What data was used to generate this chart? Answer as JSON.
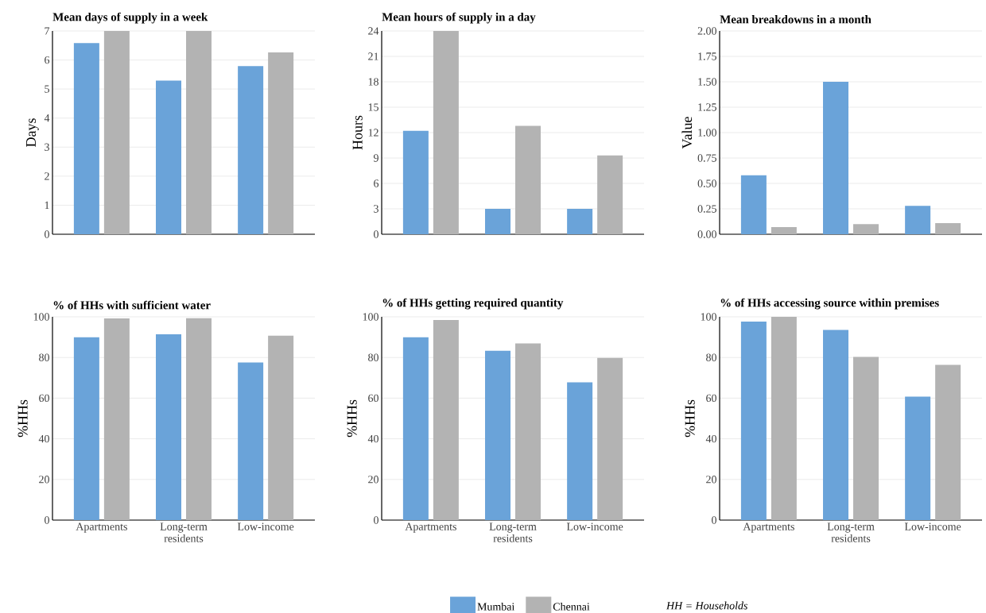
{
  "chart_data": [
    {
      "type": "bar",
      "title": "Mean days of supply in a week",
      "ylabel": "Days",
      "categories": [
        null,
        null,
        null
      ],
      "series": [
        {
          "color": "#6aa3d9",
          "values": [
            6.58,
            5.29,
            5.79
          ]
        },
        {
          "color": "#b3b3b3",
          "values": [
            7,
            7,
            6.26
          ]
        }
      ],
      "ylim": [
        0,
        7
      ],
      "yticks": [
        0,
        1,
        2,
        3,
        4,
        5,
        6,
        7
      ],
      "grid": "y"
    },
    {
      "type": "bar",
      "title": "Mean hours of supply in a day",
      "ylabel": "Hours",
      "categories": [
        null,
        null,
        null
      ],
      "series": [
        {
          "color": "#6aa3d9",
          "values": [
            12.2,
            3.0,
            3.0
          ]
        },
        {
          "color": "#b3b3b3",
          "values": [
            24,
            12.8,
            9.3
          ]
        }
      ],
      "ylim": [
        0,
        24
      ],
      "yticks": [
        0,
        3,
        6,
        9,
        12,
        15,
        18,
        21,
        24
      ],
      "grid": "y"
    },
    {
      "type": "bar",
      "title": "Mean breakdowns in a month",
      "ylabel": "Value",
      "categories": [
        null,
        null,
        null
      ],
      "series": [
        {
          "color": "#6aa3d9",
          "values": [
            0.58,
            1.5,
            0.28
          ]
        },
        {
          "color": "#b3b3b3",
          "values": [
            0.07,
            0.1,
            0.11
          ]
        }
      ],
      "ylim": [
        0,
        2
      ],
      "yticks": [
        {
          "value": 0,
          "label": "0.00"
        },
        {
          "value": 0.25,
          "label": "0.25"
        },
        {
          "value": 0.5,
          "label": "0.50"
        },
        {
          "value": 0.75,
          "label": "0.75"
        },
        {
          "value": 1,
          "label": "1.00"
        },
        {
          "value": 1.25,
          "label": "1.25"
        },
        {
          "value": 1.5,
          "label": "1.50"
        },
        {
          "value": 1.75,
          "label": "1.75"
        },
        {
          "value": 2,
          "label": "2.00"
        }
      ],
      "grid": "y"
    },
    {
      "type": "bar",
      "title": "% of HHs with sufficient water",
      "ylabel": "%HHs",
      "categories": [
        "Apartments",
        "Long-term residents",
        "Low-income"
      ],
      "series": [
        {
          "color": "#6aa3d9",
          "values": [
            89.9,
            91.4,
            77.5
          ]
        },
        {
          "color": "#b3b3b3",
          "values": [
            99.2,
            99.3,
            90.7
          ]
        }
      ],
      "ylim": [
        0,
        100
      ],
      "yticks": [
        0,
        20,
        40,
        60,
        80,
        100
      ],
      "grid": "y"
    },
    {
      "type": "bar",
      "title": "% of HHs getting required quantity",
      "ylabel": "%HHs",
      "categories": [
        "Apartments",
        "Long-term residents",
        "Low-income"
      ],
      "series": [
        {
          "name": "Mumbai",
          "color": "#6aa3d9",
          "values": [
            89.9,
            83.3,
            67.8
          ]
        },
        {
          "name": "Chennai",
          "color": "#b3b3b3",
          "values": [
            98.4,
            86.9,
            79.8
          ]
        }
      ],
      "ylim": [
        0,
        100
      ],
      "yticks": [
        0,
        20,
        40,
        60,
        80,
        100
      ],
      "grid": "y",
      "legend": "bottom",
      "annotations": [
        "HH = Households"
      ]
    },
    {
      "type": "bar",
      "title": "% of HHs accessing source within premises",
      "ylabel": "%HHs",
      "categories": [
        "Apartments",
        "Long-term residents",
        "Low-income"
      ],
      "series": [
        {
          "color": "#6aa3d9",
          "values": [
            97.7,
            93.6,
            60.7
          ]
        },
        {
          "color": "#b3b3b3",
          "values": [
            100,
            80.3,
            76.4
          ]
        }
      ],
      "ylim": [
        0,
        100
      ],
      "yticks": [
        0,
        20,
        40,
        60,
        80,
        100
      ],
      "grid": "y"
    }
  ]
}
